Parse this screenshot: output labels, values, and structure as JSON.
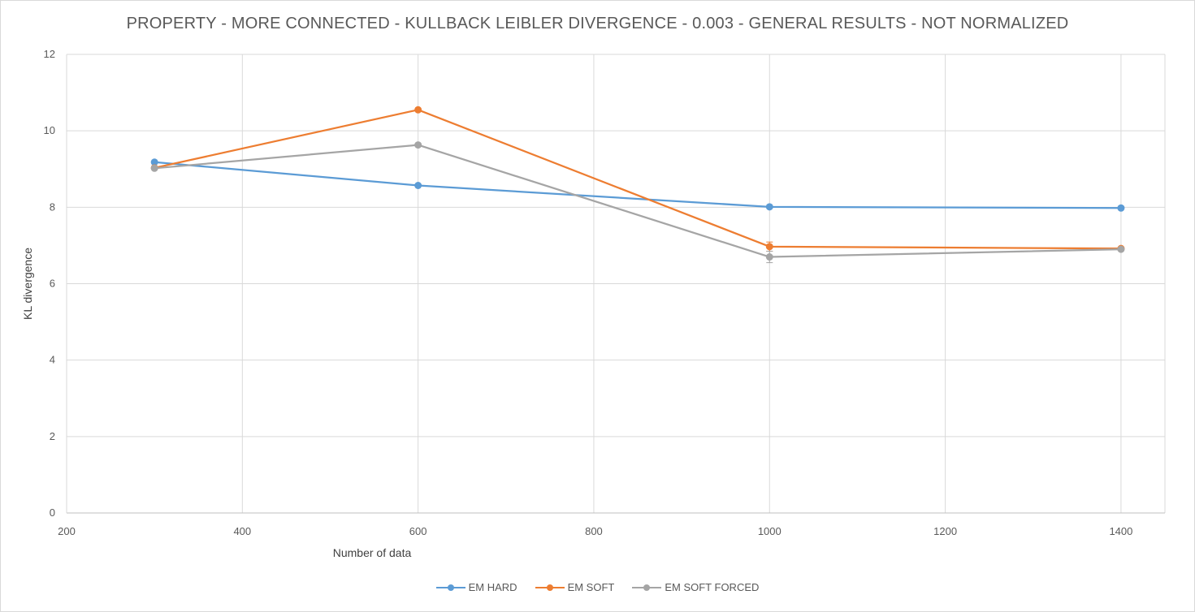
{
  "chart_data": {
    "type": "line",
    "title": "PROPERTY - MORE CONNECTED  - KULLBACK LEIBLER DIVERGENCE - 0.003 - GENERAL RESULTS - NOT NORMALIZED",
    "xlabel": "Number of data",
    "ylabel": "KL divergence",
    "xlim": [
      200,
      1450
    ],
    "ylim": [
      0,
      12
    ],
    "xticks": [
      200,
      400,
      600,
      800,
      1000,
      1200,
      1400
    ],
    "yticks": [
      0,
      2,
      4,
      6,
      8,
      10,
      12
    ],
    "grid": true,
    "legend": "bottom",
    "series": [
      {
        "name": "EM HARD",
        "color": "#5b9bd5",
        "x": [
          300,
          600,
          1000,
          1400
        ],
        "y": [
          9.18,
          8.57,
          8.01,
          7.98
        ]
      },
      {
        "name": "EM SOFT",
        "color": "#ed7d31",
        "x": [
          300,
          600,
          1000,
          1400
        ],
        "y": [
          9.03,
          10.55,
          6.97,
          6.92
        ],
        "error": [
          0,
          0,
          0.12,
          0.03
        ]
      },
      {
        "name": "EM SOFT FORCED",
        "color": "#a5a5a5",
        "x": [
          300,
          600,
          1000,
          1400
        ],
        "y": [
          9.02,
          9.63,
          6.7,
          6.9
        ],
        "error": [
          0,
          0,
          0.15,
          0.03
        ]
      }
    ]
  }
}
